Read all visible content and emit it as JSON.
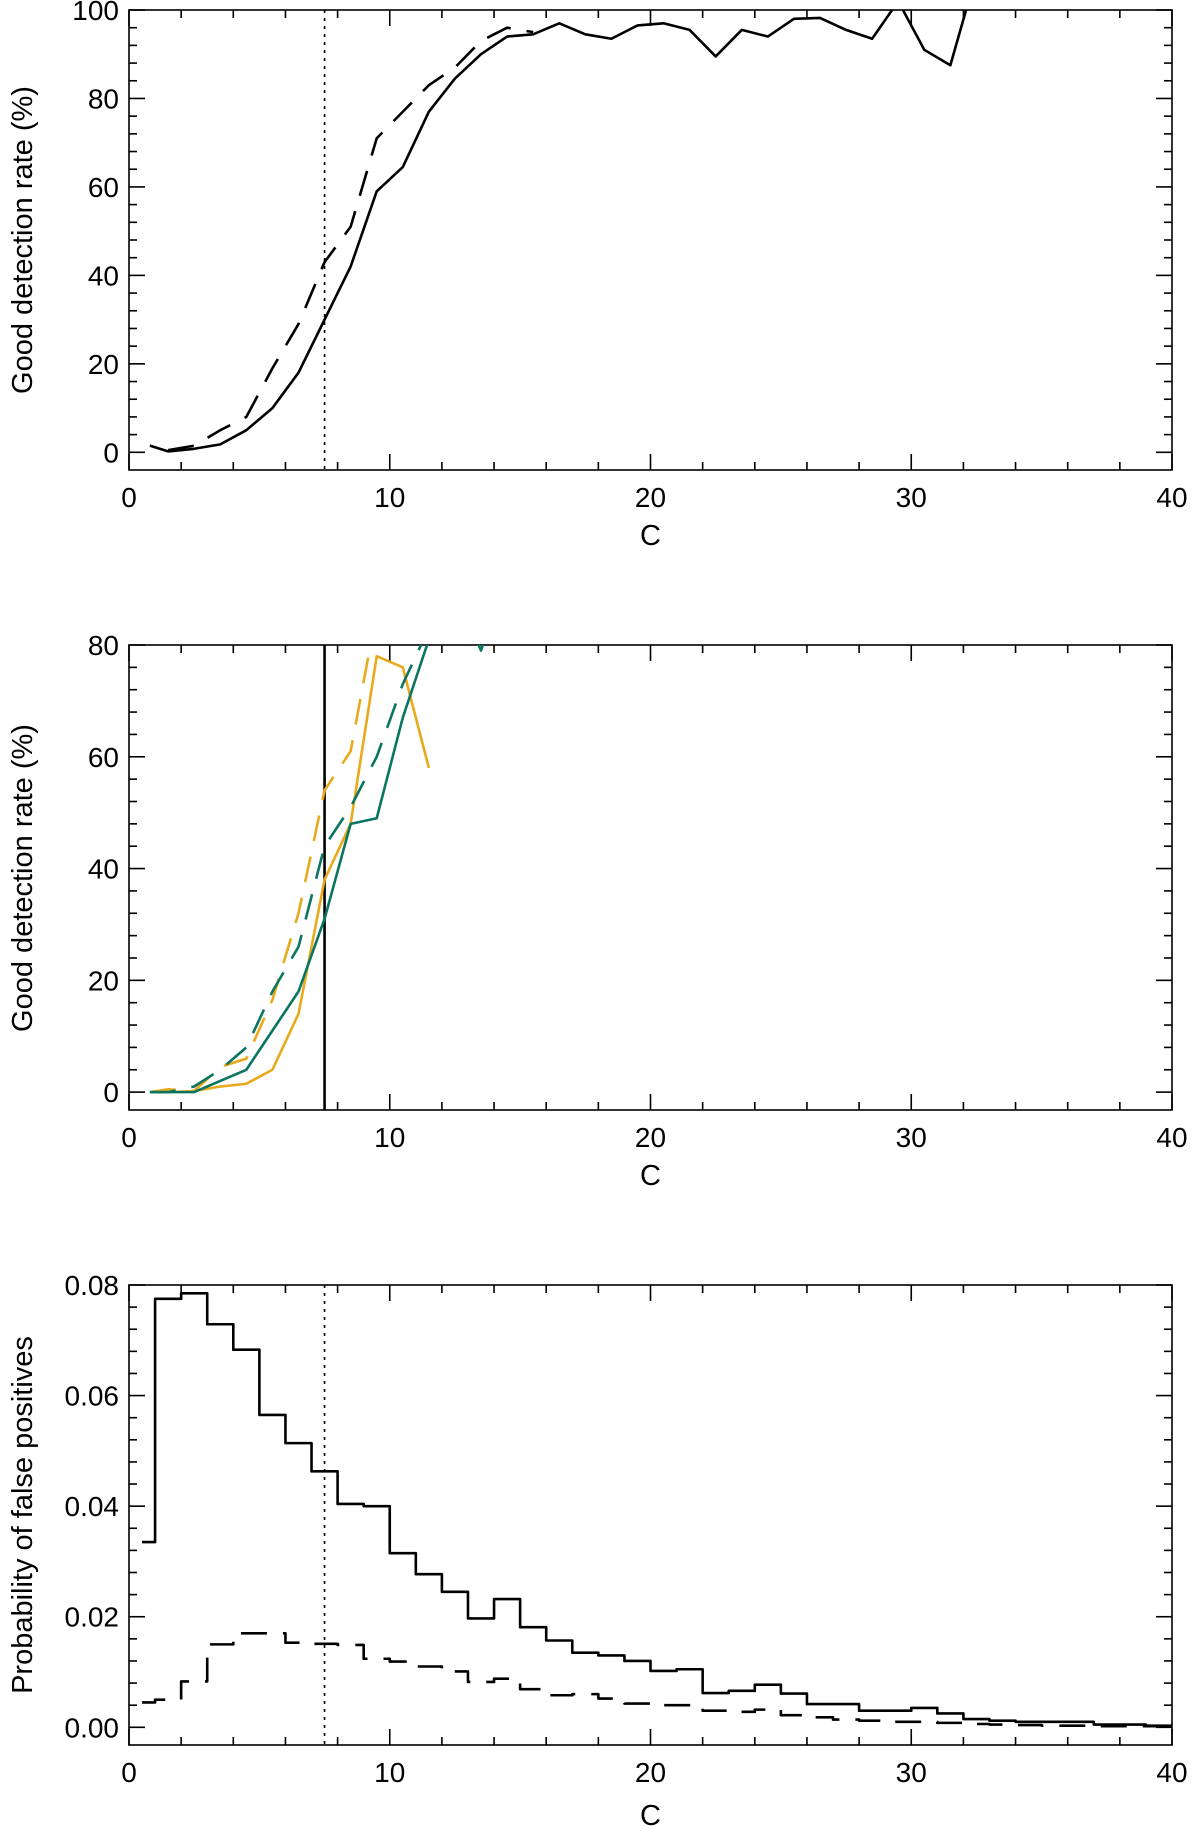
{
  "chart_data": [
    {
      "type": "line",
      "xlabel": "C",
      "ylabel": "Good detection rate (%)",
      "xlim": [
        0,
        40
      ],
      "ylim": [
        0,
        100
      ],
      "x_ticks": [
        "0",
        "10",
        "20",
        "30",
        "40"
      ],
      "y_ticks": [
        "0",
        "20",
        "40",
        "60",
        "80",
        "100"
      ],
      "grid": false,
      "vline": {
        "x": 7.5,
        "style": "dotted",
        "color": "#000000"
      },
      "series": [
        {
          "style": "solid",
          "color": "#000000",
          "x": [
            0.8,
            1.5,
            2.5,
            3.5,
            4.5,
            5.5,
            6.5,
            7.5,
            8.5,
            9.5,
            10.5,
            11.5,
            12.5,
            13.5,
            14.5,
            15.5,
            16.5,
            17.5,
            18.5,
            19.5,
            20.5,
            21.5,
            22.5,
            23.5,
            24.5,
            25.5,
            26.5,
            27.5,
            28.5,
            29.5,
            30.5,
            31.5,
            32.2
          ],
          "y": [
            1.5,
            0.2,
            0.8,
            1.8,
            5,
            10,
            18,
            30,
            42,
            59,
            64.5,
            77,
            84.5,
            90,
            94,
            94.5,
            97,
            94.5,
            93.5,
            96.5,
            97,
            95.5,
            89.5,
            95.5,
            94,
            98,
            98.2,
            95.5,
            93.5,
            102,
            91,
            87.5,
            102
          ]
        },
        {
          "style": "dashed",
          "color": "#000000",
          "x": [
            1.5,
            2.5,
            3.5,
            4.5,
            5.5,
            6.5,
            7.5,
            8.5,
            9.5,
            10.5,
            11.5,
            12.5,
            13.5,
            14.5,
            15.5
          ],
          "y": [
            0.5,
            1.5,
            5,
            8,
            19,
            29,
            43,
            51,
            71,
            77,
            83,
            87,
            93,
            96,
            95
          ]
        }
      ]
    },
    {
      "type": "line",
      "xlabel": "C",
      "ylabel": "Good detection rate (%)",
      "xlim": [
        0,
        40
      ],
      "ylim": [
        0,
        80
      ],
      "x_ticks": [
        "0",
        "10",
        "20",
        "30",
        "40"
      ],
      "y_ticks": [
        "0",
        "20",
        "40",
        "60",
        "80"
      ],
      "grid": false,
      "vline": {
        "x": 7.5,
        "style": "solid",
        "color": "#000000"
      },
      "series": [
        {
          "style": "solid",
          "color": "#e8aa1c",
          "x": [
            0.8,
            1.5,
            2.5,
            3.5,
            4.5,
            5.5,
            6.5,
            7.5,
            8.5,
            9.5,
            10.5,
            11.5
          ],
          "y": [
            0,
            0,
            0.2,
            1,
            1.5,
            4,
            14,
            38,
            48,
            78,
            76,
            58
          ]
        },
        {
          "style": "dashed",
          "color": "#e8aa1c",
          "x": [
            0.8,
            1.5,
            2.5,
            3.5,
            4.5,
            5.5,
            6.5,
            7.5,
            8.5,
            9.5,
            10.5,
            11.5
          ],
          "y": [
            0,
            0.5,
            0.2,
            4.5,
            6,
            16.5,
            32,
            54,
            61,
            86,
            88,
            82
          ]
        },
        {
          "style": "solid",
          "color": "#0a7560",
          "x": [
            0.8,
            1.5,
            2.5,
            3.5,
            4.5,
            5.5,
            6.5,
            7.5,
            8.5,
            9.5,
            10.5,
            11.5,
            12.5,
            13.5,
            14.0
          ],
          "y": [
            0,
            0,
            0,
            2,
            4,
            11,
            18,
            31,
            48,
            49,
            67,
            81,
            90,
            79,
            86
          ]
        },
        {
          "style": "dashed",
          "color": "#0a7560",
          "x": [
            0.8,
            1.5,
            2.5,
            3.5,
            4.5,
            5.5,
            6.5,
            7.5,
            8.5,
            9.5,
            10.5,
            11.5,
            12.5
          ],
          "y": [
            0,
            0,
            1,
            4,
            8,
            18,
            26,
            44,
            51,
            60,
            73,
            83,
            88
          ]
        }
      ]
    },
    {
      "type": "line",
      "xlabel": "C",
      "ylabel": "Probability of false positives",
      "xlim": [
        0,
        40
      ],
      "ylim": [
        0,
        0.08
      ],
      "x_ticks": [
        "0",
        "10",
        "20",
        "30",
        "40"
      ],
      "y_ticks": [
        "0.00",
        "0.02",
        "0.04",
        "0.06",
        "0.08"
      ],
      "grid": false,
      "vline": {
        "x": 7.5,
        "style": "dotted",
        "color": "#000000"
      },
      "series": [
        {
          "style": "solid-step",
          "color": "#000000",
          "x": [
            0.5,
            1,
            2,
            3,
            4,
            5,
            6,
            7,
            8,
            9,
            10,
            11,
            12,
            13,
            14,
            15,
            16,
            17,
            18,
            19,
            20,
            21,
            22,
            23,
            24,
            25,
            26,
            27,
            28,
            29,
            30,
            31,
            32,
            33,
            34,
            35,
            36,
            37,
            38,
            39,
            40
          ],
          "y": [
            0.0335,
            0.0775,
            0.0785,
            0.0729,
            0.0683,
            0.0565,
            0.0514,
            0.0463,
            0.0404,
            0.04,
            0.0315,
            0.0277,
            0.0245,
            0.0197,
            0.0232,
            0.0181,
            0.0157,
            0.0135,
            0.013,
            0.012,
            0.0102,
            0.0105,
            0.0062,
            0.0066,
            0.0077,
            0.0061,
            0.0042,
            0.0042,
            0.003,
            0.003,
            0.0035,
            0.0025,
            0.0015,
            0.0012,
            0.001,
            0.001,
            0.001,
            0.0005,
            0.0005,
            0.0003,
            0.0002
          ]
        },
        {
          "style": "dashed-step",
          "color": "#000000",
          "x": [
            0.5,
            1,
            2,
            3,
            4,
            5,
            6,
            7,
            8,
            9,
            10,
            11,
            12,
            13,
            14,
            15,
            16,
            17,
            18,
            19,
            20,
            21,
            22,
            23,
            24,
            25,
            26,
            27,
            28,
            29,
            30,
            31,
            32,
            33,
            34,
            35,
            36,
            37,
            38,
            39,
            40
          ],
          "y": [
            0.0045,
            0.005,
            0.0083,
            0.015,
            0.017,
            0.017,
            0.0153,
            0.0151,
            0.0149,
            0.0124,
            0.0119,
            0.011,
            0.0101,
            0.0082,
            0.0088,
            0.0069,
            0.0058,
            0.006,
            0.0052,
            0.0043,
            0.004,
            0.004,
            0.003,
            0.0028,
            0.0032,
            0.0022,
            0.0018,
            0.0014,
            0.0012,
            0.001,
            0.001,
            0.0008,
            0.0006,
            0.0005,
            0.0004,
            0.0003,
            0.0003,
            0.0002,
            0.0002,
            0.0002,
            0.0001
          ]
        }
      ]
    }
  ]
}
